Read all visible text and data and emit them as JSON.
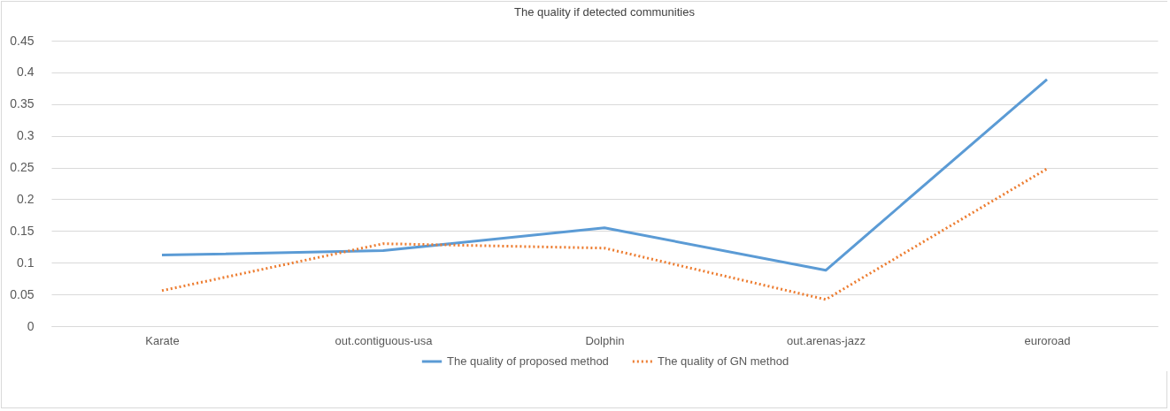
{
  "chart_data": {
    "type": "line",
    "title": "The quality if detected communities",
    "categories": [
      "Karate",
      "out.contiguous-usa",
      "Dolphin",
      "out.arenas-jazz",
      "euroroad"
    ],
    "series": [
      {
        "name": "The quality of proposed method",
        "color": "#5b9bd5",
        "line_style": "solid",
        "values": [
          0.112,
          0.119,
          0.155,
          0.088,
          0.389
        ]
      },
      {
        "name": "The quality of GN method",
        "color": "#ed7d31",
        "line_style": "dotted",
        "values": [
          0.056,
          0.13,
          0.123,
          0.042,
          0.248
        ]
      }
    ],
    "ylim": [
      0,
      0.45
    ],
    "yticks": [
      0,
      0.05,
      0.1,
      0.15,
      0.2,
      0.25,
      0.3,
      0.35,
      0.4,
      0.45
    ],
    "grid": "y",
    "legend": "bottom",
    "marker": "none"
  }
}
